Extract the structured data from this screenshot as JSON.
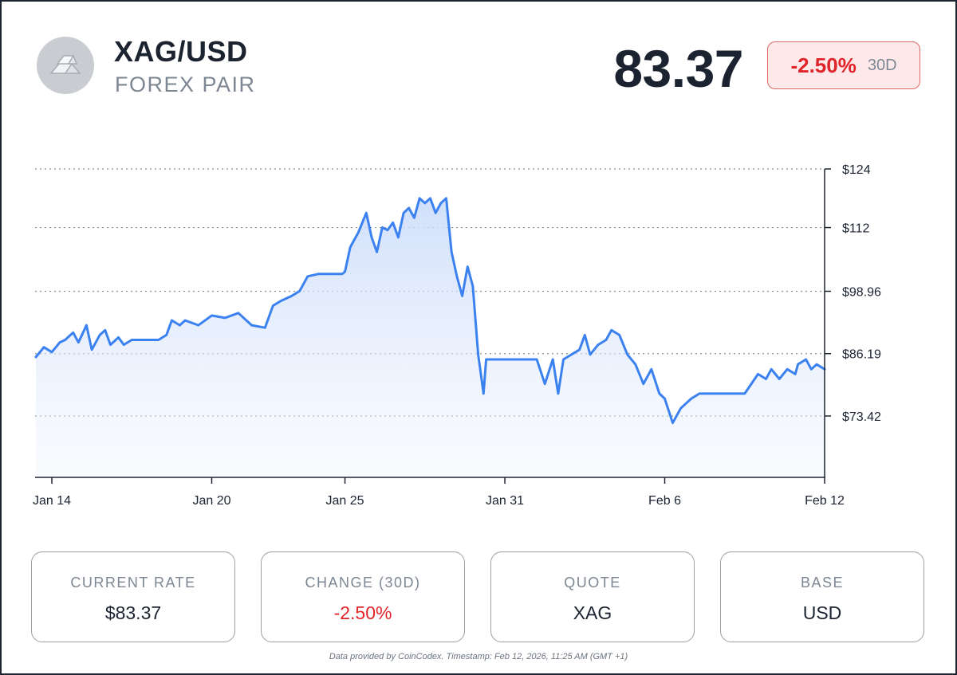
{
  "header": {
    "title": "XAG/USD",
    "subtitle": "FOREX PAIR",
    "price": "83.37",
    "change": "-2.50%",
    "period": "30D",
    "logo_icon": "silver-bars-icon"
  },
  "colors": {
    "line": "#3b82f0",
    "negative": "#e0242a",
    "badge_bg": "#fde9e9",
    "text_dark": "#1b2230",
    "text_muted": "#7d8794"
  },
  "chart_data": {
    "type": "line",
    "y_ticks": [
      "$124",
      "$112",
      "$98.96",
      "$86.19",
      "$73.42"
    ],
    "y_tick_values": [
      124,
      112,
      98.96,
      86.19,
      73.42
    ],
    "x_ticks": [
      "Jan 14",
      "Jan 20",
      "Jan 25",
      "Jan 31",
      "Feb 6",
      "Feb 12"
    ],
    "x_tick_values": [
      0,
      6,
      11,
      17,
      23,
      29
    ],
    "ylim": [
      61.5,
      124
    ],
    "xlim": [
      -0.6,
      29
    ],
    "grid": true,
    "series": [
      {
        "x": [
          -0.6,
          -0.3,
          0,
          0.3,
          0.5,
          0.8,
          1.0,
          1.3,
          1.5,
          1.8,
          2.0,
          2.2,
          2.5,
          2.7,
          3.0,
          3.3,
          3.6,
          3.9,
          4.0,
          4.3,
          4.5,
          4.8,
          5.0,
          5.5,
          6.0,
          6.5,
          7.0,
          7.5,
          8.0,
          8.3,
          8.6,
          9.0,
          9.3,
          9.6,
          10.0,
          10.3,
          10.6,
          10.9,
          11.0,
          11.2,
          11.5,
          11.8,
          12.0,
          12.2,
          12.4,
          12.6,
          12.8,
          13.0,
          13.2,
          13.4,
          13.6,
          13.8,
          14.0,
          14.2,
          14.4,
          14.6,
          14.8,
          15.0,
          15.2,
          15.4,
          15.6,
          15.8,
          16.0,
          16.1,
          16.2,
          16.3,
          16.4,
          16.5,
          16.6,
          16.7,
          16.8,
          17.0,
          17.5,
          18.0,
          18.2,
          18.5,
          18.8,
          19.0,
          19.2,
          19.5,
          19.8,
          20.0,
          20.2,
          20.5,
          20.8,
          21.0,
          21.3,
          21.6,
          21.9,
          22.2,
          22.5,
          22.8,
          23.0,
          23.3,
          23.6,
          23.8,
          24.0,
          24.3,
          24.6,
          25.0,
          25.5,
          26.0,
          26.5,
          26.8,
          27.0,
          27.3,
          27.6,
          27.9,
          28.0,
          28.3,
          28.5,
          28.7,
          29.0
        ],
        "y": [
          85.5,
          87.5,
          86.5,
          88.5,
          89,
          90.5,
          88.5,
          92,
          87,
          90,
          91,
          88,
          89.5,
          88,
          89,
          89,
          89,
          89,
          89,
          90,
          93,
          92,
          93,
          92,
          94,
          93.5,
          94.5,
          92,
          91.5,
          96,
          97,
          98,
          99,
          102,
          102.5,
          102.5,
          102.5,
          102.5,
          103,
          108,
          111,
          115,
          110,
          107,
          112,
          111.5,
          113,
          110,
          115,
          116,
          114,
          118,
          117,
          118,
          115,
          117,
          118,
          107,
          102,
          98,
          104,
          100,
          86,
          82,
          78,
          85,
          85,
          85,
          85,
          85,
          85,
          85,
          85,
          85,
          85,
          80,
          85,
          78,
          85,
          86,
          87,
          90,
          86,
          88,
          89,
          91,
          90,
          86,
          84,
          80,
          83,
          78,
          77,
          72,
          75,
          76,
          77,
          78,
          78,
          78,
          78,
          78,
          82,
          81,
          83,
          81,
          83,
          82,
          84,
          85,
          83,
          84,
          83
        ]
      }
    ]
  },
  "cards": [
    {
      "label": "CURRENT RATE",
      "value": "$83.37"
    },
    {
      "label": "CHANGE (30D)",
      "value": "-2.50%"
    },
    {
      "label": "QUOTE",
      "value": "XAG"
    },
    {
      "label": "BASE",
      "value": "USD"
    }
  ],
  "footer": "Data provided by CoinCodex. Timestamp: Feb 12, 2026, 11:25 AM (GMT +1)"
}
